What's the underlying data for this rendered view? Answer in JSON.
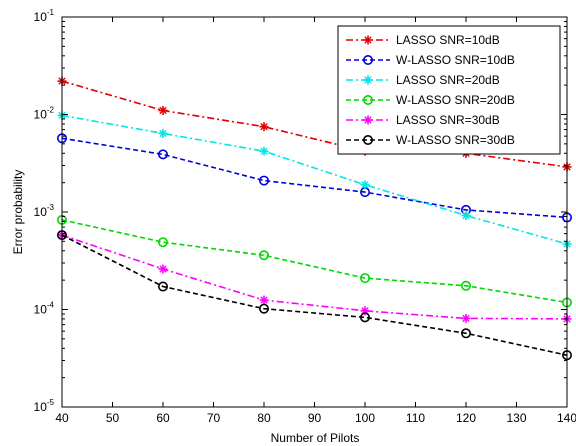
{
  "chart_data": {
    "type": "line",
    "title": "",
    "xlabel": "Number of Pilots",
    "ylabel": "Error probability",
    "xlim": [
      40,
      140
    ],
    "ylim": [
      1e-05,
      0.1
    ],
    "yscale": "log",
    "grid": false,
    "legend_position": "top-right",
    "x_ticks": [
      40,
      50,
      60,
      70,
      80,
      90,
      100,
      110,
      120,
      130,
      140
    ],
    "y_ticks": [
      {
        "value": 1e-05,
        "base": "10",
        "exp": "-5"
      },
      {
        "value": 0.0001,
        "base": "10",
        "exp": "-4"
      },
      {
        "value": 0.001,
        "base": "10",
        "exp": "-3"
      },
      {
        "value": 0.01,
        "base": "10",
        "exp": "-2"
      },
      {
        "value": 0.1,
        "base": "10",
        "exp": "-1"
      }
    ],
    "x": [
      40,
      60,
      80,
      100,
      120,
      140
    ],
    "series": [
      {
        "name": "LASSO SNR=10dB",
        "color": "#e00000",
        "dash": "dashdot",
        "marker": "star",
        "values": [
          0.022,
          0.011,
          0.0075,
          0.0042,
          0.004,
          0.0029
        ]
      },
      {
        "name": "W-LASSO SNR=10dB",
        "color": "#0000e0",
        "dash": "dashed",
        "marker": "circle",
        "values": [
          0.0057,
          0.0039,
          0.0021,
          0.0016,
          0.00105,
          0.00088
        ]
      },
      {
        "name": "LASSO SNR=20dB",
        "color": "#00e6e6",
        "dash": "dashdot",
        "marker": "star",
        "values": [
          0.0098,
          0.0064,
          0.0042,
          0.0019,
          0.00092,
          0.00047
        ]
      },
      {
        "name": "W-LASSO SNR=20dB",
        "color": "#00d800",
        "dash": "dashed",
        "marker": "circle",
        "values": [
          0.00083,
          0.00049,
          0.00036,
          0.00021,
          0.000175,
          0.000118
        ]
      },
      {
        "name": "LASSO SNR=30dB",
        "color": "#ff00ff",
        "dash": "dashdot",
        "marker": "star",
        "values": [
          0.00058,
          0.00026,
          0.000125,
          9.7e-05,
          8.1e-05,
          8e-05
        ]
      },
      {
        "name": "W-LASSO SNR=30dB",
        "color": "#000000",
        "dash": "dashed",
        "marker": "circle",
        "values": [
          0.00058,
          0.000172,
          0.000102,
          8.3e-05,
          5.7e-05,
          3.4e-05
        ]
      }
    ]
  }
}
